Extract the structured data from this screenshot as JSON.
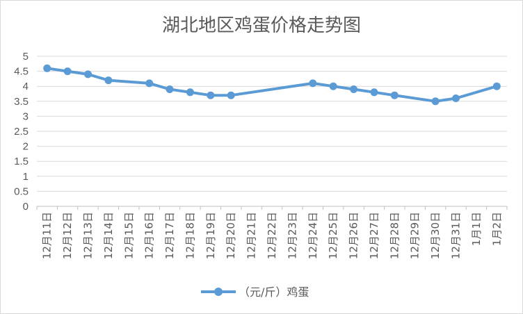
{
  "chart_data": {
    "type": "line",
    "title": "湖北地区鸡蛋价格走势图",
    "xlabel": "",
    "ylabel": "",
    "ylim": [
      0,
      5
    ],
    "yticks": [
      "0",
      "0.5",
      "1",
      "1.5",
      "2",
      "2.5",
      "3",
      "3.5",
      "4",
      "4.5",
      "5"
    ],
    "grid": true,
    "legend_position": "bottom",
    "categories": [
      "12月11日",
      "12月12日",
      "12月13日",
      "12月14日",
      "12月15日",
      "12月16日",
      "12月17日",
      "12月18日",
      "12月19日",
      "12月20日",
      "12月21日",
      "12月22日",
      "12月23日",
      "12月24日",
      "12月25日",
      "12月26日",
      "12月27日",
      "12月28日",
      "12月29日",
      "12月30日",
      "12月31日",
      "1月1日",
      "1月2日"
    ],
    "series": [
      {
        "name": "（元/斤）鸡蛋",
        "color": "#5b9bd5",
        "values": [
          4.6,
          4.5,
          4.4,
          4.2,
          null,
          4.1,
          3.9,
          3.8,
          3.7,
          3.7,
          null,
          null,
          null,
          4.1,
          4.0,
          3.9,
          3.8,
          3.7,
          null,
          3.5,
          3.6,
          null,
          4.0
        ]
      }
    ]
  }
}
